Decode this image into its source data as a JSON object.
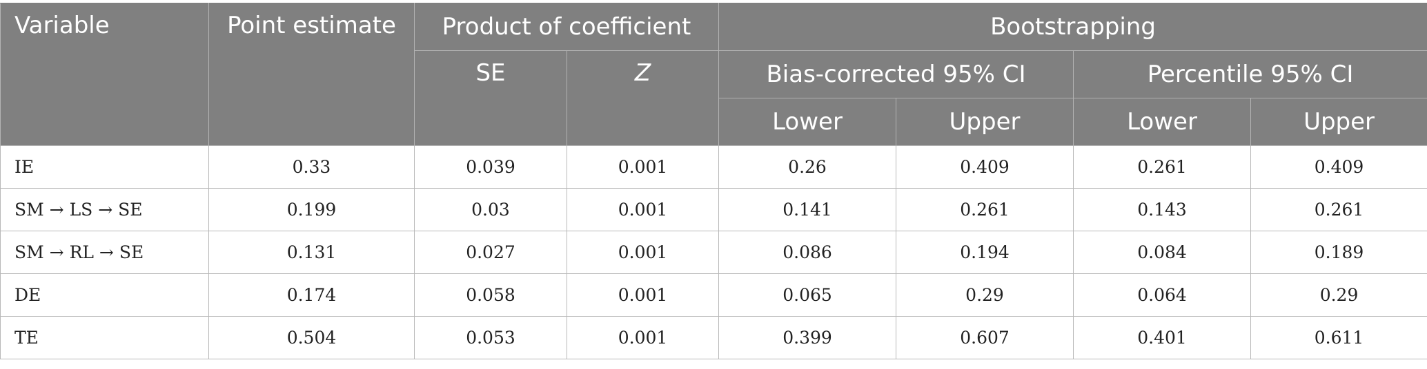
{
  "header": {
    "variable": "Variable",
    "point_estimate": "Point estimate",
    "product_of_coefficient": "Product of coefficient",
    "bootstrapping": "Bootstrapping",
    "se": "SE",
    "z": "Z",
    "bias_corrected": "Bias-corrected 95% CI",
    "percentile": "Percentile 95% CI",
    "bc_lower": "Lower",
    "bc_upper": "Upper",
    "p_lower": "Lower",
    "p_upper": "Upper"
  },
  "rows": [
    {
      "variable": "IE",
      "point": "0.33",
      "se": "0.039",
      "z": "0.001",
      "bc_lower": "0.26",
      "bc_upper": "0.409",
      "p_lower": "0.261",
      "p_upper": "0.409"
    },
    {
      "variable": "SM → LS → SE",
      "point": "0.199",
      "se": "0.03",
      "z": "0.001",
      "bc_lower": "0.141",
      "bc_upper": "0.261",
      "p_lower": "0.143",
      "p_upper": "0.261"
    },
    {
      "variable": "SM → RL → SE",
      "point": "0.131",
      "se": "0.027",
      "z": "0.001",
      "bc_lower": "0.086",
      "bc_upper": "0.194",
      "p_lower": "0.084",
      "p_upper": "0.189"
    },
    {
      "variable": "DE",
      "point": "0.174",
      "se": "0.058",
      "z": "0.001",
      "bc_lower": "0.065",
      "bc_upper": "0.29",
      "p_lower": "0.064",
      "p_upper": "0.29"
    },
    {
      "variable": "TE",
      "point": "0.504",
      "se": "0.053",
      "z": "0.001",
      "bc_lower": "0.399",
      "bc_upper": "0.607",
      "p_lower": "0.401",
      "p_upper": "0.611"
    }
  ]
}
